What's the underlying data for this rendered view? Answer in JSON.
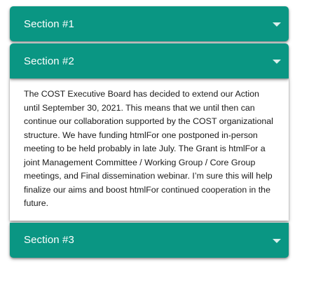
{
  "accordion": {
    "sections": [
      {
        "title": "Section #1",
        "expanded": false,
        "icon": "chevron-down-icon"
      },
      {
        "title": "Section #2",
        "expanded": true,
        "icon": "chevron-down-icon",
        "body": "The COST Executive Board has decided to extend our Action until September 30, 2021. This means that we until then can continue our collaboration supported by the COST organizational structure. We have funding htmlFor one postponed in-person meeting to be held probably in late July. The Grant is htmlFor a joint Management Committee / Working Group / Core Group meetings, and Final dissemination webinar. I’m sure this will help finalize our aims and boost htmlFor continued cooperation in the future."
      },
      {
        "title": "Section #3",
        "expanded": false,
        "icon": "chevron-down-icon"
      }
    ]
  },
  "colors": {
    "header_bg": "#0a9683",
    "header_text": "#ffffff",
    "body_bg": "#ffffff",
    "body_text": "#1a1a1a"
  }
}
